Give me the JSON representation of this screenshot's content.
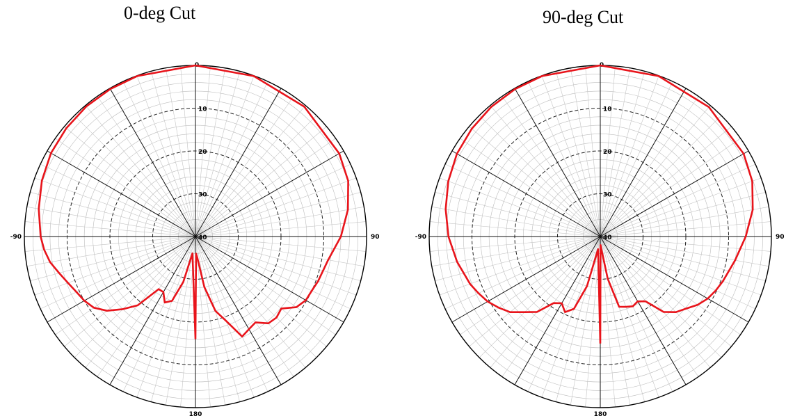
{
  "chart_data": [
    {
      "type": "polar-line",
      "title": "0-deg Cut",
      "angle_ticks": [
        "0",
        "90",
        "180",
        "-90"
      ],
      "radial_ticks": [
        "10",
        "20",
        "30",
        "40"
      ],
      "radial_range_db": [
        -40,
        0
      ],
      "angle_spokes_deg": 30,
      "grid": true,
      "series": [
        {
          "color": "#e8141b",
          "points": [
            {
              "angle": -180,
              "value": -16
            },
            {
              "angle": -170,
              "value": -36
            },
            {
              "angle": -165,
              "value": -29
            },
            {
              "angle": -160,
              "value": -24
            },
            {
              "angle": -155,
              "value": -23
            },
            {
              "angle": -150,
              "value": -25
            },
            {
              "angle": -145,
              "value": -25
            },
            {
              "angle": -140,
              "value": -19
            },
            {
              "angle": -135,
              "value": -16
            },
            {
              "angle": -130,
              "value": -13
            },
            {
              "angle": -125,
              "value": -11
            },
            {
              "angle": -120,
              "value": -10
            },
            {
              "angle": -115,
              "value": -9.3
            },
            {
              "angle": -110,
              "value": -8.3
            },
            {
              "angle": -105,
              "value": -7.0
            },
            {
              "angle": -100,
              "value": -5.5
            },
            {
              "angle": -95,
              "value": -4.5
            },
            {
              "angle": -90,
              "value": -3.8
            },
            {
              "angle": -80,
              "value": -2.8
            },
            {
              "angle": -70,
              "value": -1.8
            },
            {
              "angle": -60,
              "value": -1.0
            },
            {
              "angle": -50,
              "value": -0.6
            },
            {
              "angle": -40,
              "value": -0.3
            },
            {
              "angle": -30,
              "value": -0.2
            },
            {
              "angle": -20,
              "value": -0.1
            },
            {
              "angle": 0,
              "value": 0
            },
            {
              "angle": 20,
              "value": -0.1
            },
            {
              "angle": 40,
              "value": -0.4
            },
            {
              "angle": 60,
              "value": -1.2
            },
            {
              "angle": 70,
              "value": -2.0
            },
            {
              "angle": 80,
              "value": -3.8
            },
            {
              "angle": 90,
              "value": -6.0
            },
            {
              "angle": 100,
              "value": -8.5
            },
            {
              "angle": 110,
              "value": -9.5
            },
            {
              "angle": 115,
              "value": -10.0
            },
            {
              "angle": 120,
              "value": -10.2
            },
            {
              "angle": 125,
              "value": -11.2
            },
            {
              "angle": 130,
              "value": -13.8
            },
            {
              "angle": 135,
              "value": -13.2
            },
            {
              "angle": 140,
              "value": -13.5
            },
            {
              "angle": 145,
              "value": -15.5
            },
            {
              "angle": 150,
              "value": -15.0
            },
            {
              "angle": 155,
              "value": -14.2
            },
            {
              "angle": 160,
              "value": -19
            },
            {
              "angle": 165,
              "value": -22
            },
            {
              "angle": 170,
              "value": -28
            },
            {
              "angle": 175,
              "value": -35
            },
            {
              "angle": 178,
              "value": -36
            },
            {
              "angle": 180,
              "value": -16
            }
          ]
        }
      ]
    },
    {
      "type": "polar-line",
      "title": "90-deg Cut",
      "angle_ticks": [
        "0",
        "90",
        "180",
        "-90"
      ],
      "radial_ticks": [
        "10",
        "20",
        "30",
        "40"
      ],
      "radial_range_db": [
        -40,
        0
      ],
      "angle_spokes_deg": 30,
      "grid": true,
      "series": [
        {
          "color": "#e8141b",
          "points": [
            {
              "angle": -180,
              "value": -15
            },
            {
              "angle": -170,
              "value": -37
            },
            {
              "angle": -165,
              "value": -28
            },
            {
              "angle": -160,
              "value": -22
            },
            {
              "angle": -155,
              "value": -20.5
            },
            {
              "angle": -150,
              "value": -22
            },
            {
              "angle": -145,
              "value": -21
            },
            {
              "angle": -140,
              "value": -17
            },
            {
              "angle": -135,
              "value": -15
            },
            {
              "angle": -130,
              "value": -12.5
            },
            {
              "angle": -125,
              "value": -11
            },
            {
              "angle": -120,
              "value": -9.6
            },
            {
              "angle": -115,
              "value": -8.6
            },
            {
              "angle": -110,
              "value": -7.6
            },
            {
              "angle": -100,
              "value": -6.0
            },
            {
              "angle": -90,
              "value": -4.5
            },
            {
              "angle": -80,
              "value": -3.3
            },
            {
              "angle": -70,
              "value": -2.2
            },
            {
              "angle": -60,
              "value": -1.3
            },
            {
              "angle": -50,
              "value": -0.8
            },
            {
              "angle": -40,
              "value": -0.4
            },
            {
              "angle": -30,
              "value": -0.2
            },
            {
              "angle": -20,
              "value": -0.1
            },
            {
              "angle": 0,
              "value": 0
            },
            {
              "angle": 20,
              "value": -0.1
            },
            {
              "angle": 40,
              "value": -0.5
            },
            {
              "angle": 60,
              "value": -1.3
            },
            {
              "angle": 70,
              "value": -2.2
            },
            {
              "angle": 80,
              "value": -3.8
            },
            {
              "angle": 90,
              "value": -6.0
            },
            {
              "angle": 100,
              "value": -8.0
            },
            {
              "angle": 110,
              "value": -9.5
            },
            {
              "angle": 115,
              "value": -10.2
            },
            {
              "angle": 120,
              "value": -11.0
            },
            {
              "angle": 125,
              "value": -12.2
            },
            {
              "angle": 130,
              "value": -13.8
            },
            {
              "angle": 135,
              "value": -15.0
            },
            {
              "angle": 140,
              "value": -17.0
            },
            {
              "angle": 145,
              "value": -21.5
            },
            {
              "angle": 150,
              "value": -22.5
            },
            {
              "angle": 155,
              "value": -22.0
            },
            {
              "angle": 160,
              "value": -22.5
            },
            {
              "angle": 165,
              "value": -23.0
            },
            {
              "angle": 170,
              "value": -30
            },
            {
              "angle": 175,
              "value": -37
            },
            {
              "angle": 178,
              "value": -38
            },
            {
              "angle": 180,
              "value": -15
            }
          ]
        }
      ]
    }
  ]
}
